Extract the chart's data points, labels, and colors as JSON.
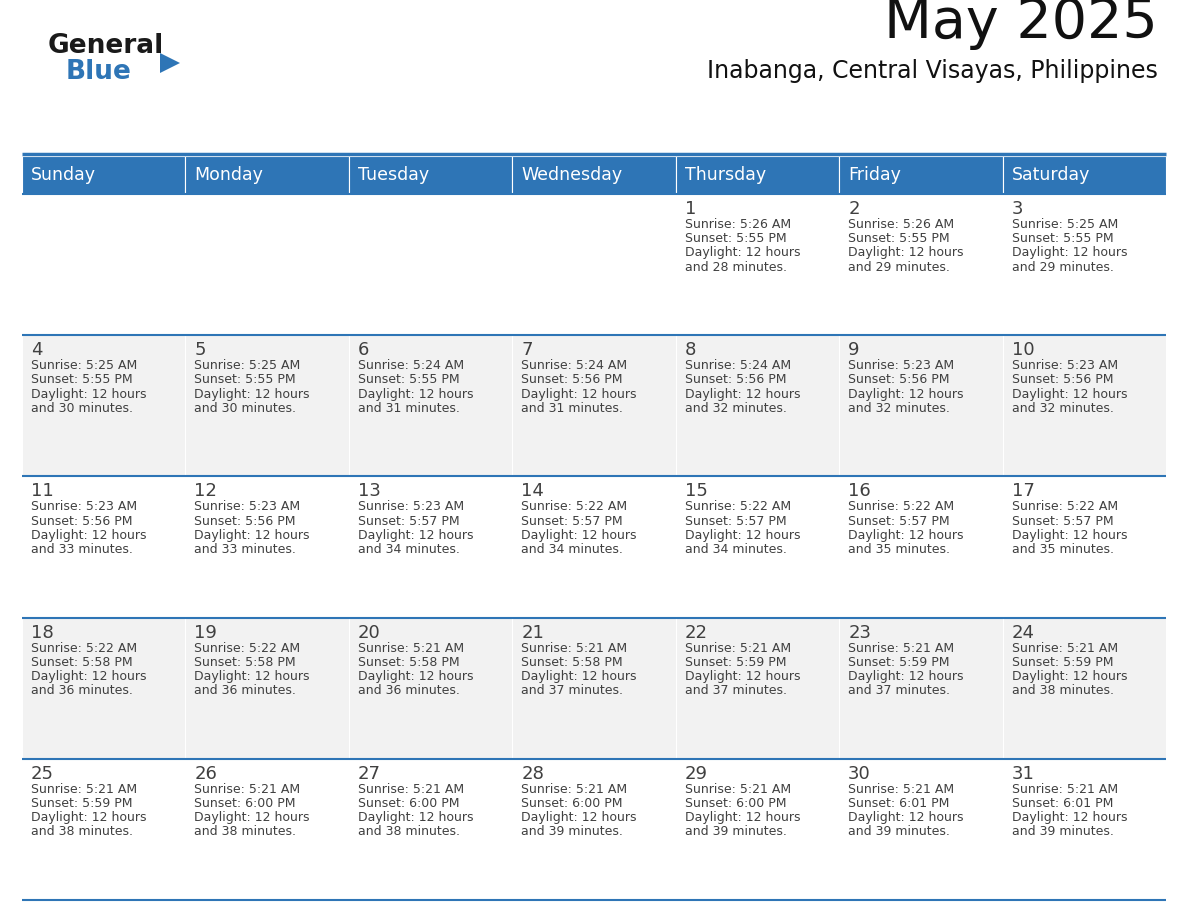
{
  "title": "May 2025",
  "subtitle": "Inabanga, Central Visayas, Philippines",
  "header_bg": "#2E75B6",
  "header_text": "#FFFFFF",
  "day_names": [
    "Sunday",
    "Monday",
    "Tuesday",
    "Wednesday",
    "Thursday",
    "Friday",
    "Saturday"
  ],
  "row_bg_even": "#FFFFFF",
  "row_bg_odd": "#F2F2F2",
  "border_color": "#2E75B6",
  "text_color": "#404040",
  "day_num_color": "#404040",
  "logo_general_color": "#1a1a1a",
  "logo_blue_color": "#2E75B6",
  "logo_triangle_color": "#2E75B6",
  "calendar": [
    [
      {
        "day": 0,
        "info": ""
      },
      {
        "day": 0,
        "info": ""
      },
      {
        "day": 0,
        "info": ""
      },
      {
        "day": 0,
        "info": ""
      },
      {
        "day": 1,
        "info": "Sunrise: 5:26 AM\nSunset: 5:55 PM\nDaylight: 12 hours\nand 28 minutes."
      },
      {
        "day": 2,
        "info": "Sunrise: 5:26 AM\nSunset: 5:55 PM\nDaylight: 12 hours\nand 29 minutes."
      },
      {
        "day": 3,
        "info": "Sunrise: 5:25 AM\nSunset: 5:55 PM\nDaylight: 12 hours\nand 29 minutes."
      }
    ],
    [
      {
        "day": 4,
        "info": "Sunrise: 5:25 AM\nSunset: 5:55 PM\nDaylight: 12 hours\nand 30 minutes."
      },
      {
        "day": 5,
        "info": "Sunrise: 5:25 AM\nSunset: 5:55 PM\nDaylight: 12 hours\nand 30 minutes."
      },
      {
        "day": 6,
        "info": "Sunrise: 5:24 AM\nSunset: 5:55 PM\nDaylight: 12 hours\nand 31 minutes."
      },
      {
        "day": 7,
        "info": "Sunrise: 5:24 AM\nSunset: 5:56 PM\nDaylight: 12 hours\nand 31 minutes."
      },
      {
        "day": 8,
        "info": "Sunrise: 5:24 AM\nSunset: 5:56 PM\nDaylight: 12 hours\nand 32 minutes."
      },
      {
        "day": 9,
        "info": "Sunrise: 5:23 AM\nSunset: 5:56 PM\nDaylight: 12 hours\nand 32 minutes."
      },
      {
        "day": 10,
        "info": "Sunrise: 5:23 AM\nSunset: 5:56 PM\nDaylight: 12 hours\nand 32 minutes."
      }
    ],
    [
      {
        "day": 11,
        "info": "Sunrise: 5:23 AM\nSunset: 5:56 PM\nDaylight: 12 hours\nand 33 minutes."
      },
      {
        "day": 12,
        "info": "Sunrise: 5:23 AM\nSunset: 5:56 PM\nDaylight: 12 hours\nand 33 minutes."
      },
      {
        "day": 13,
        "info": "Sunrise: 5:23 AM\nSunset: 5:57 PM\nDaylight: 12 hours\nand 34 minutes."
      },
      {
        "day": 14,
        "info": "Sunrise: 5:22 AM\nSunset: 5:57 PM\nDaylight: 12 hours\nand 34 minutes."
      },
      {
        "day": 15,
        "info": "Sunrise: 5:22 AM\nSunset: 5:57 PM\nDaylight: 12 hours\nand 34 minutes."
      },
      {
        "day": 16,
        "info": "Sunrise: 5:22 AM\nSunset: 5:57 PM\nDaylight: 12 hours\nand 35 minutes."
      },
      {
        "day": 17,
        "info": "Sunrise: 5:22 AM\nSunset: 5:57 PM\nDaylight: 12 hours\nand 35 minutes."
      }
    ],
    [
      {
        "day": 18,
        "info": "Sunrise: 5:22 AM\nSunset: 5:58 PM\nDaylight: 12 hours\nand 36 minutes."
      },
      {
        "day": 19,
        "info": "Sunrise: 5:22 AM\nSunset: 5:58 PM\nDaylight: 12 hours\nand 36 minutes."
      },
      {
        "day": 20,
        "info": "Sunrise: 5:21 AM\nSunset: 5:58 PM\nDaylight: 12 hours\nand 36 minutes."
      },
      {
        "day": 21,
        "info": "Sunrise: 5:21 AM\nSunset: 5:58 PM\nDaylight: 12 hours\nand 37 minutes."
      },
      {
        "day": 22,
        "info": "Sunrise: 5:21 AM\nSunset: 5:59 PM\nDaylight: 12 hours\nand 37 minutes."
      },
      {
        "day": 23,
        "info": "Sunrise: 5:21 AM\nSunset: 5:59 PM\nDaylight: 12 hours\nand 37 minutes."
      },
      {
        "day": 24,
        "info": "Sunrise: 5:21 AM\nSunset: 5:59 PM\nDaylight: 12 hours\nand 38 minutes."
      }
    ],
    [
      {
        "day": 25,
        "info": "Sunrise: 5:21 AM\nSunset: 5:59 PM\nDaylight: 12 hours\nand 38 minutes."
      },
      {
        "day": 26,
        "info": "Sunrise: 5:21 AM\nSunset: 6:00 PM\nDaylight: 12 hours\nand 38 minutes."
      },
      {
        "day": 27,
        "info": "Sunrise: 5:21 AM\nSunset: 6:00 PM\nDaylight: 12 hours\nand 38 minutes."
      },
      {
        "day": 28,
        "info": "Sunrise: 5:21 AM\nSunset: 6:00 PM\nDaylight: 12 hours\nand 39 minutes."
      },
      {
        "day": 29,
        "info": "Sunrise: 5:21 AM\nSunset: 6:00 PM\nDaylight: 12 hours\nand 39 minutes."
      },
      {
        "day": 30,
        "info": "Sunrise: 5:21 AM\nSunset: 6:01 PM\nDaylight: 12 hours\nand 39 minutes."
      },
      {
        "day": 31,
        "info": "Sunrise: 5:21 AM\nSunset: 6:01 PM\nDaylight: 12 hours\nand 39 minutes."
      }
    ]
  ]
}
